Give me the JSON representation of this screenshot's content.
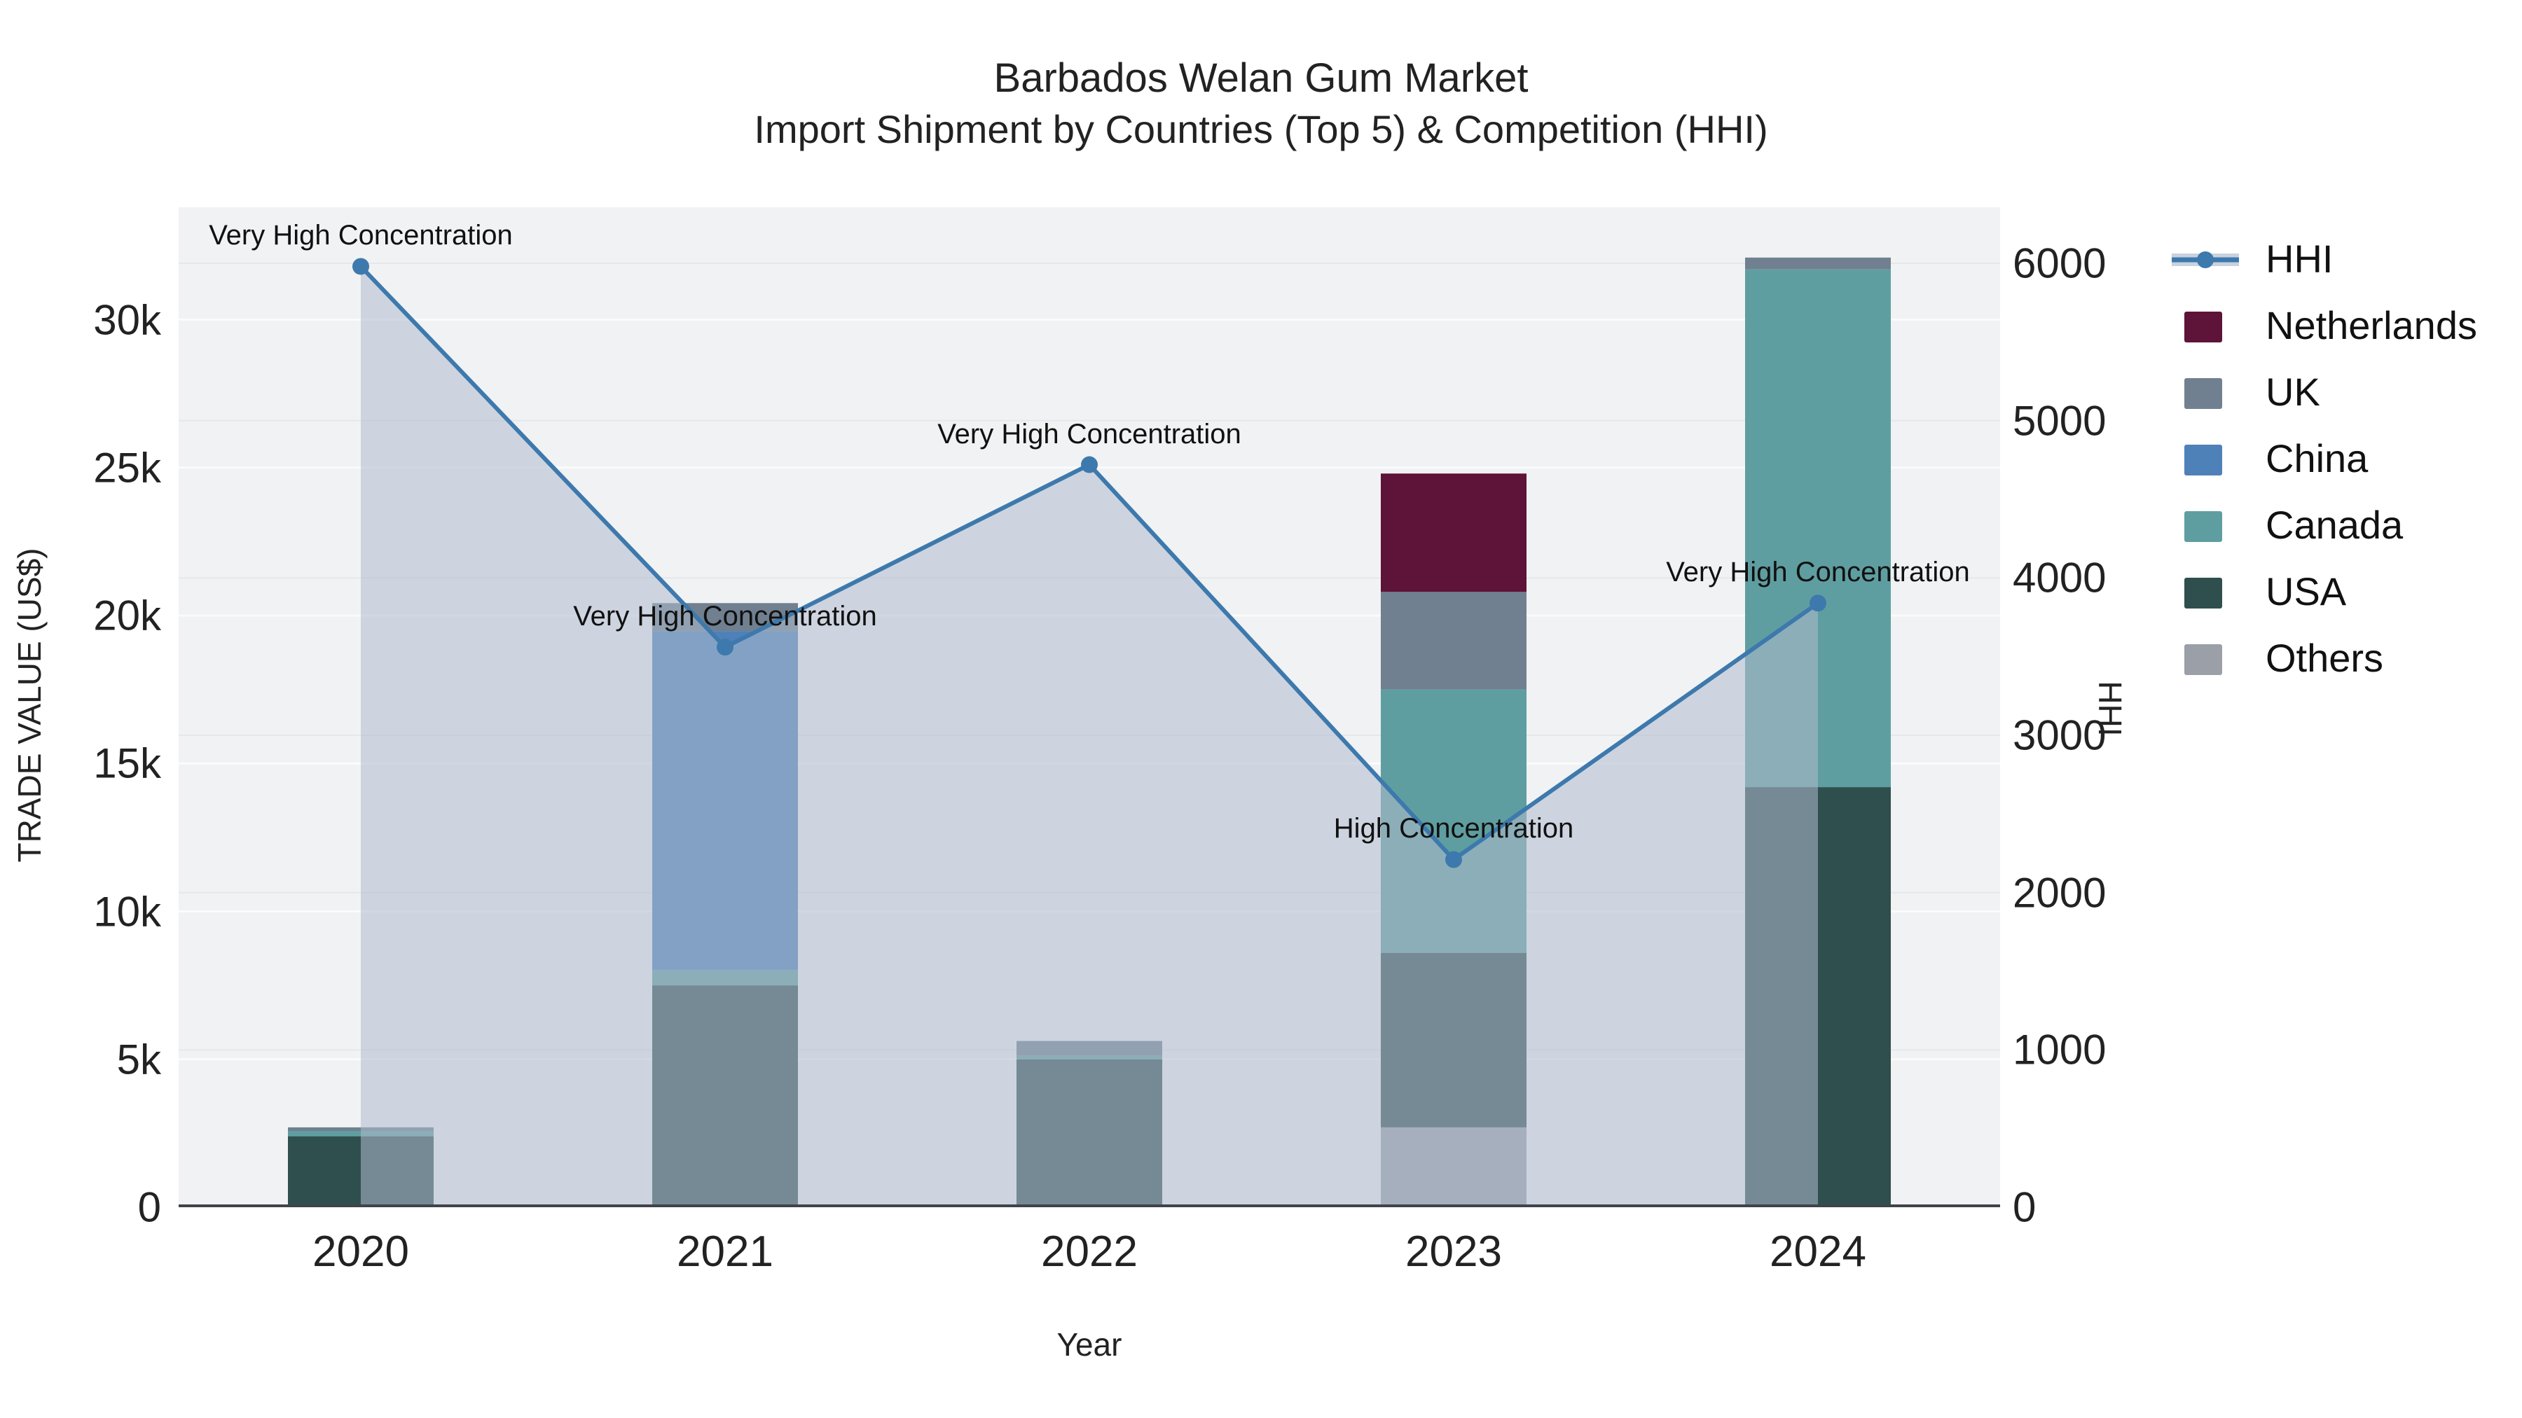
{
  "title": {
    "line1": "Barbados Welan Gum Market",
    "line2": "Import Shipment by Countries (Top 5) & Competition (HHI)"
  },
  "legend": {
    "items": [
      {
        "label": "HHI",
        "color": "#3d79ad",
        "type": "line"
      },
      {
        "label": "Netherlands",
        "color": "#5e1338",
        "type": "box"
      },
      {
        "label": "UK",
        "color": "#708090",
        "type": "box"
      },
      {
        "label": "China",
        "color": "#4e81b8",
        "type": "box"
      },
      {
        "label": "Canada",
        "color": "#5f9ea0",
        "type": "box"
      },
      {
        "label": "USA",
        "color": "#2f4f4f",
        "type": "box"
      },
      {
        "label": "Others",
        "color": "#9ba0a8",
        "type": "box"
      }
    ]
  },
  "chart_data": {
    "type": "bar+line",
    "title": "Barbados Welan Gum Market — Import Shipment by Countries (Top 5) & Competition (HHI)",
    "categories": [
      "2020",
      "2021",
      "2022",
      "2023",
      "2024"
    ],
    "stack_order_bottom_to_top": [
      "Others",
      "USA",
      "Canada",
      "China",
      "UK",
      "Netherlands"
    ],
    "series": [
      {
        "name": "Others",
        "color": "#9ba0a8",
        "values": [
          0,
          0,
          0,
          2700,
          0
        ]
      },
      {
        "name": "USA",
        "color": "#2f4f4f",
        "values": [
          2400,
          7500,
          5000,
          5900,
          14200
        ]
      },
      {
        "name": "Canada",
        "color": "#5f9ea0",
        "values": [
          180,
          520,
          120,
          8900,
          17500
        ]
      },
      {
        "name": "China",
        "color": "#4e81b8",
        "values": [
          0,
          11450,
          0,
          0,
          0
        ]
      },
      {
        "name": "UK",
        "color": "#708090",
        "values": [
          120,
          950,
          500,
          3300,
          400
        ]
      },
      {
        "name": "Netherlands",
        "color": "#5e1338",
        "values": [
          0,
          0,
          0,
          4000,
          0
        ]
      }
    ],
    "line": {
      "name": "HHI",
      "color": "#3d79ad",
      "area_fill": "rgba(174,188,206,0.55)",
      "values": [
        5980,
        3560,
        4720,
        2210,
        3840
      ]
    },
    "annotations": [
      {
        "category": "2020",
        "text": "Very High Concentration"
      },
      {
        "category": "2021",
        "text": "Very High Concentration"
      },
      {
        "category": "2022",
        "text": "Very High Concentration"
      },
      {
        "category": "2023",
        "text": "High Concentration"
      },
      {
        "category": "2024",
        "text": "Very High Concentration"
      }
    ],
    "x_axis": {
      "label": "Year"
    },
    "left_axis": {
      "label": "TRADE VALUE (US$)",
      "range": [
        0,
        33800
      ],
      "grid": true,
      "ticks": [
        {
          "v": 0,
          "label": "0"
        },
        {
          "v": 5000,
          "label": "5k"
        },
        {
          "v": 10000,
          "label": "10k"
        },
        {
          "v": 15000,
          "label": "15k"
        },
        {
          "v": 20000,
          "label": "20k"
        },
        {
          "v": 25000,
          "label": "25k"
        },
        {
          "v": 30000,
          "label": "30k"
        }
      ]
    },
    "right_axis": {
      "label": "HHI",
      "range": [
        0,
        6356
      ],
      "grid": true,
      "ticks": [
        {
          "v": 0,
          "label": "0"
        },
        {
          "v": 1000,
          "label": "1000"
        },
        {
          "v": 2000,
          "label": "2000"
        },
        {
          "v": 3000,
          "label": "3000"
        },
        {
          "v": 4000,
          "label": "4000"
        },
        {
          "v": 5000,
          "label": "5000"
        },
        {
          "v": 6000,
          "label": "6000"
        }
      ]
    },
    "layout": {
      "legend_position": "right",
      "plot_bg": "#f1f2f3"
    }
  }
}
